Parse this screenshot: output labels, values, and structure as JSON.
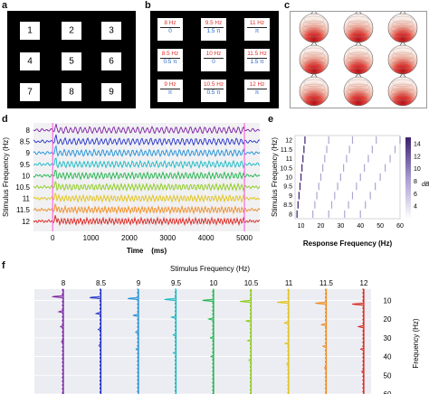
{
  "panel_labels": [
    "a",
    "b",
    "c",
    "d",
    "e",
    "f"
  ],
  "panel_a": {
    "numbers": [
      "1",
      "2",
      "3",
      "4",
      "5",
      "6",
      "7",
      "8",
      "9"
    ]
  },
  "panel_b": {
    "tiles": [
      {
        "freq": "8 Hz",
        "phase": "0"
      },
      {
        "freq": "9.5 Hz",
        "phase": "1.5 π"
      },
      {
        "freq": "11 Hz",
        "phase": "π"
      },
      {
        "freq": "8.5 Hz",
        "phase": "0.5 π"
      },
      {
        "freq": "10 Hz",
        "phase": "0"
      },
      {
        "freq": "11.5 Hz",
        "phase": "1.5 π"
      },
      {
        "freq": "9 Hz",
        "phase": "π"
      },
      {
        "freq": "10.5 Hz",
        "phase": "0.5 π"
      },
      {
        "freq": "12 Hz",
        "phase": "π"
      }
    ]
  },
  "panel_d": {
    "ylabel": "Stimulus Frequency (Hz)",
    "xlabel": "Time    (ms)",
    "yticks": [
      "8",
      "8.5",
      "9",
      "9.5",
      "10",
      "10.5",
      "11",
      "11.5",
      "12"
    ],
    "xticks": [
      "0",
      "1000",
      "2000",
      "3000",
      "4000",
      "5000"
    ]
  },
  "panel_e": {
    "ylabel": "Stimulus Frequency (Hz)",
    "xlabel": "Response Frequency (Hz)",
    "yticks": [
      "12",
      "11.5",
      "11",
      "10.5",
      "10",
      "9.5",
      "9",
      "8.5",
      "8"
    ],
    "xticks": [
      "10",
      "20",
      "30",
      "40",
      "50",
      "60"
    ],
    "colorbar_ticks": [
      "14",
      "12",
      "10",
      "8",
      "6",
      "4"
    ],
    "colorbar_label": "dB"
  },
  "panel_f": {
    "title": "Stimulus Frequency (Hz)",
    "columns": [
      "8",
      "8.5",
      "9",
      "9.5",
      "10",
      "10.5",
      "11",
      "11.5",
      "12"
    ],
    "ylabel": "Frequency (Hz)",
    "yticks": [
      "10",
      "20",
      "30",
      "40",
      "50",
      "60"
    ]
  },
  "colors": {
    "series": [
      "#7a1fa2",
      "#2330c9",
      "#1e8fd6",
      "#17b8c4",
      "#1fb34a",
      "#8ccb1e",
      "#e0c21a",
      "#f08a1e",
      "#d8231e"
    ],
    "marker": "#ff4fd8",
    "frame": "#000000",
    "freq_text": "#e0312b",
    "phase_text": "#1f63c6"
  },
  "chart_data": [
    {
      "type": "line",
      "panel": "d",
      "xlabel": "Time    (ms)",
      "ylabel": "Stimulus Frequency (Hz)",
      "xlim": [
        -500,
        5400
      ],
      "categories": [
        "8",
        "8.5",
        "9",
        "9.5",
        "10",
        "10.5",
        "11",
        "11.5",
        "12"
      ],
      "markers_x": [
        0,
        5000
      ]
    },
    {
      "type": "heatmap",
      "panel": "e",
      "xlabel": "Response Frequency (Hz)",
      "ylabel": "Stimulus Frequency (Hz)",
      "xlim": [
        7,
        60
      ],
      "ylim": [
        8,
        12
      ],
      "colorbar_range": [
        2,
        15
      ],
      "colorbar_label": "dB"
    },
    {
      "type": "line",
      "panel": "f",
      "title": "Stimulus Frequency (Hz)",
      "ylabel": "Frequency (Hz)",
      "categories": [
        "8",
        "8.5",
        "9",
        "9.5",
        "10",
        "10.5",
        "11",
        "11.5",
        "12"
      ],
      "ylim": [
        4,
        60
      ]
    }
  ]
}
